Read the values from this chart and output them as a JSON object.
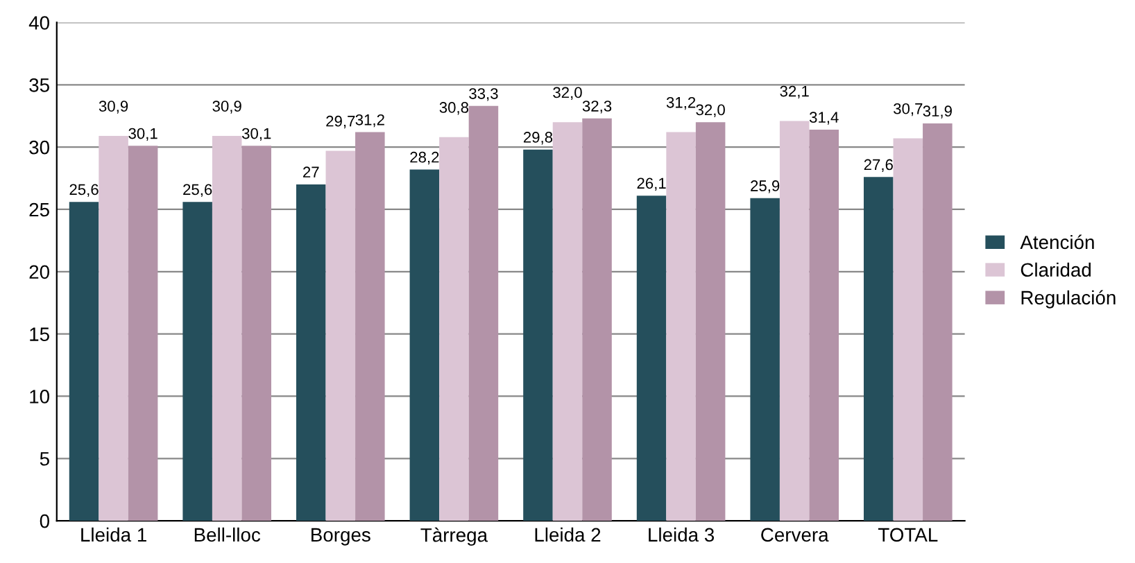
{
  "chart_data": {
    "type": "bar",
    "categories": [
      "Lleida 1",
      "Bell-lloc",
      "Borges",
      "Tàrrega",
      "Lleida 2",
      "Lleida 3",
      "Cervera",
      "TOTAL"
    ],
    "series": [
      {
        "name": "Atención",
        "color": "#254f5c",
        "values": [
          25.6,
          25.6,
          27,
          28.2,
          29.8,
          26.1,
          25.9,
          27.6
        ],
        "value_labels": [
          "25,6",
          "25,6",
          "27",
          "28,2",
          "29,8",
          "26,1",
          "25,9",
          "27,6"
        ]
      },
      {
        "name": "Claridad",
        "color": "#dcc5d5",
        "values": [
          30.9,
          30.9,
          29.7,
          30.8,
          32.0,
          31.2,
          32.1,
          30.7
        ],
        "value_labels": [
          "30,9",
          "30,9",
          "29,7",
          "30,8",
          "32,0",
          "31,2",
          "32,1",
          "30,7"
        ]
      },
      {
        "name": "Regulación",
        "color": "#b393a8",
        "values": [
          30.1,
          30.1,
          31.2,
          33.3,
          32.3,
          32.0,
          31.4,
          31.9
        ],
        "value_labels": [
          "30,1",
          "30,1",
          "31,2",
          "33,3",
          "32,3",
          "32,0",
          "31,4",
          "31,9"
        ]
      }
    ],
    "ylim": [
      0,
      40
    ],
    "yticks": [
      0,
      5,
      10,
      15,
      20,
      25,
      30,
      35,
      40
    ],
    "grid": "y",
    "legend": "right"
  }
}
